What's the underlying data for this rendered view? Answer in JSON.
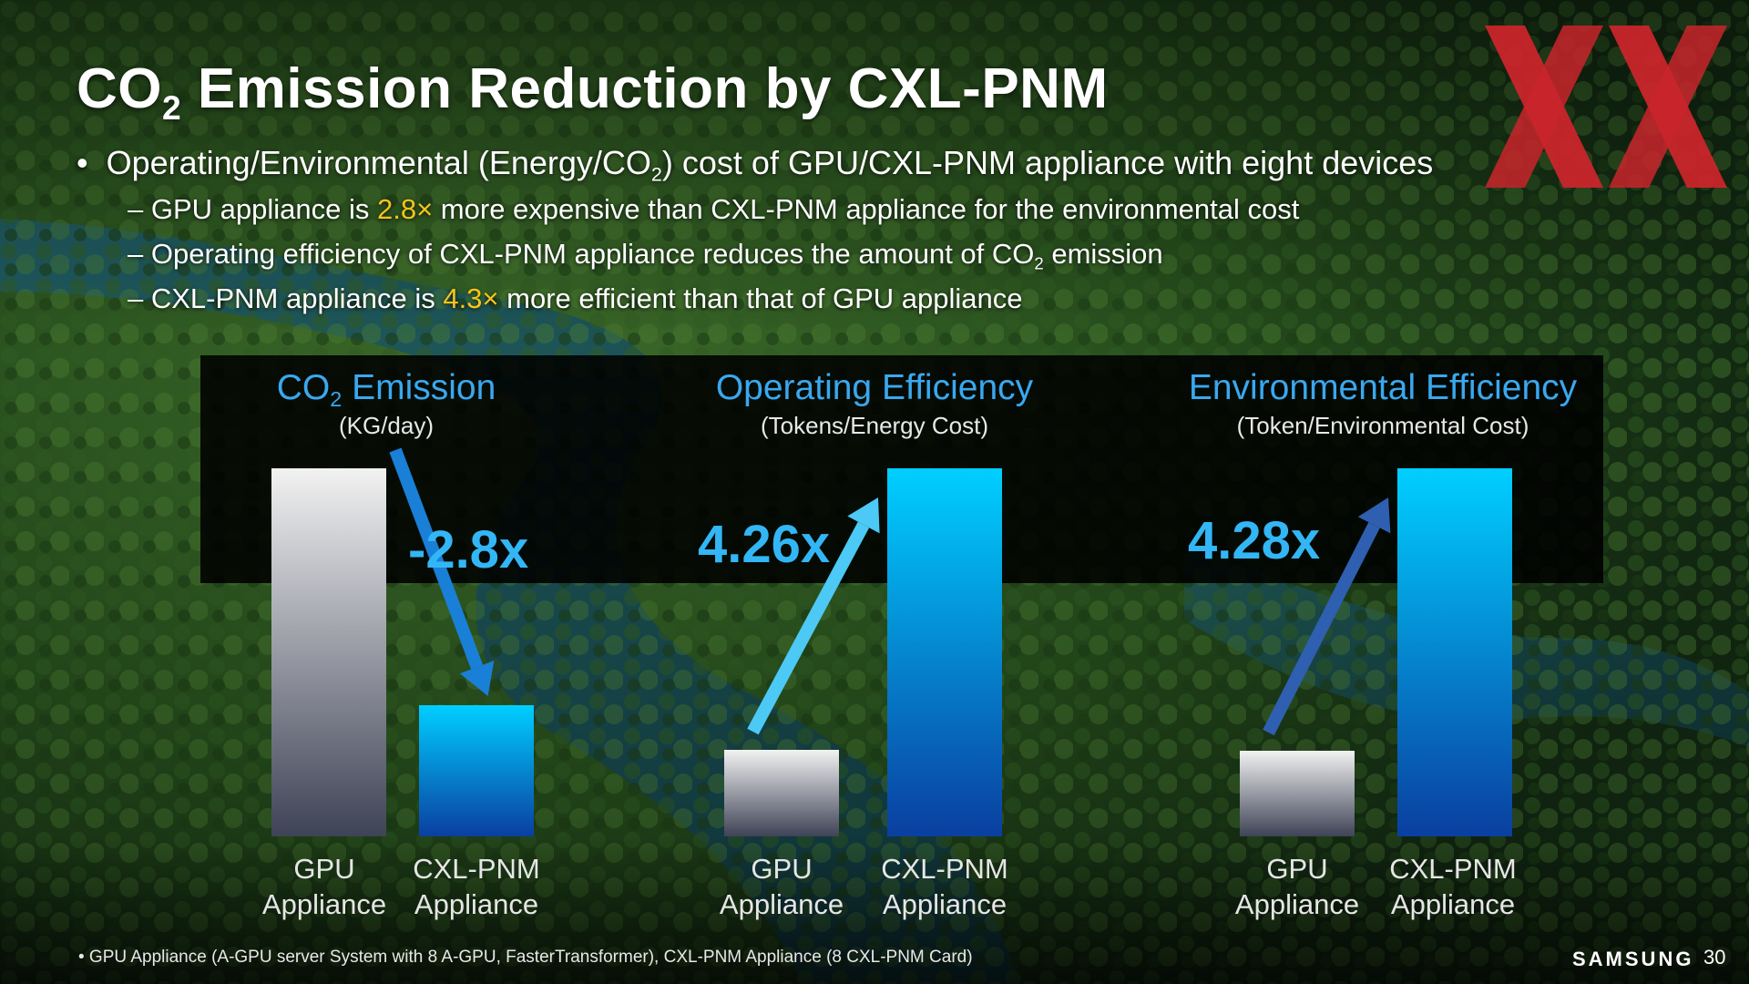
{
  "title": {
    "main": "CO",
    "sub": "2",
    "rest": " Emission Reduction by CXL-PNM"
  },
  "bullet": {
    "pre": "Operating/Environmental (Energy/CO",
    "sub": "2",
    "post": ") cost of GPU/CXL-PNM appliance with eight devices"
  },
  "subbullets": [
    {
      "pre": "– GPU appliance is ",
      "hl": "2.8×",
      "post": " more expensive than CXL-PNM appliance for the environmental cost",
      "sub": ""
    },
    {
      "pre": "– Operating efficiency of CXL-PNM appliance reduces the amount of CO",
      "hl": "",
      "sub": "2",
      "post": " emission"
    },
    {
      "pre": "– CXL-PNM appliance is ",
      "hl": "4.3×",
      "post": " more efficient than that of GPU appliance",
      "sub": ""
    }
  ],
  "colors": {
    "highlight": "#f5c518",
    "chart_title": "#39a8f0",
    "bar_cxl_top": "#00cfff",
    "bar_cxl_bottom": "#0a3fa0",
    "logo_red": "#c9252b"
  },
  "chart_data": [
    {
      "type": "bar",
      "title": "CO₂ Emission",
      "title_pre": "CO",
      "title_sub": "2",
      "title_post": " Emission",
      "unit": "(KG/day)",
      "categories": [
        "GPU Appliance",
        "CXL-PNM Appliance"
      ],
      "category_lines": [
        [
          "GPU",
          "Appliance"
        ],
        [
          "CXL-PNM",
          "Appliance"
        ]
      ],
      "values": [
        2.8,
        1.0
      ],
      "ylim": [
        0,
        2.8
      ],
      "factor": "-2.8x",
      "arrow": "down",
      "arrow_color": "#1a7fd6",
      "grid": false
    },
    {
      "type": "bar",
      "title": "Operating Efficiency",
      "title_pre": "Operating Efficiency",
      "title_sub": "",
      "title_post": "",
      "unit": "(Tokens/Energy Cost)",
      "categories": [
        "GPU Appliance",
        "CXL-PNM Appliance"
      ],
      "category_lines": [
        [
          "GPU",
          "Appliance"
        ],
        [
          "CXL-PNM",
          "Appliance"
        ]
      ],
      "values": [
        1.0,
        4.26
      ],
      "ylim": [
        0,
        4.26
      ],
      "factor": "4.26x",
      "arrow": "up",
      "arrow_color": "#4cc9f5",
      "grid": false
    },
    {
      "type": "bar",
      "title": "Environmental Efficiency",
      "title_pre": "Environmental Efficiency",
      "title_sub": "",
      "title_post": "",
      "unit": "(Token/Environmental Cost)",
      "categories": [
        "GPU Appliance",
        "CXL-PNM Appliance"
      ],
      "category_lines": [
        [
          "GPU",
          "Appliance"
        ],
        [
          "CXL-PNM",
          "Appliance"
        ]
      ],
      "values": [
        1.0,
        4.28
      ],
      "ylim": [
        0,
        4.28
      ],
      "factor": "4.28x",
      "arrow": "up",
      "arrow_color": "#2f5fb0",
      "grid": false
    }
  ],
  "footnote": "• GPU Appliance (A-GPU server System with 8 A-GPU, FasterTransformer), CXL-PNM Appliance (8 CXL-PNM Card)",
  "brand": "SAMSUNG",
  "page_number": "30"
}
